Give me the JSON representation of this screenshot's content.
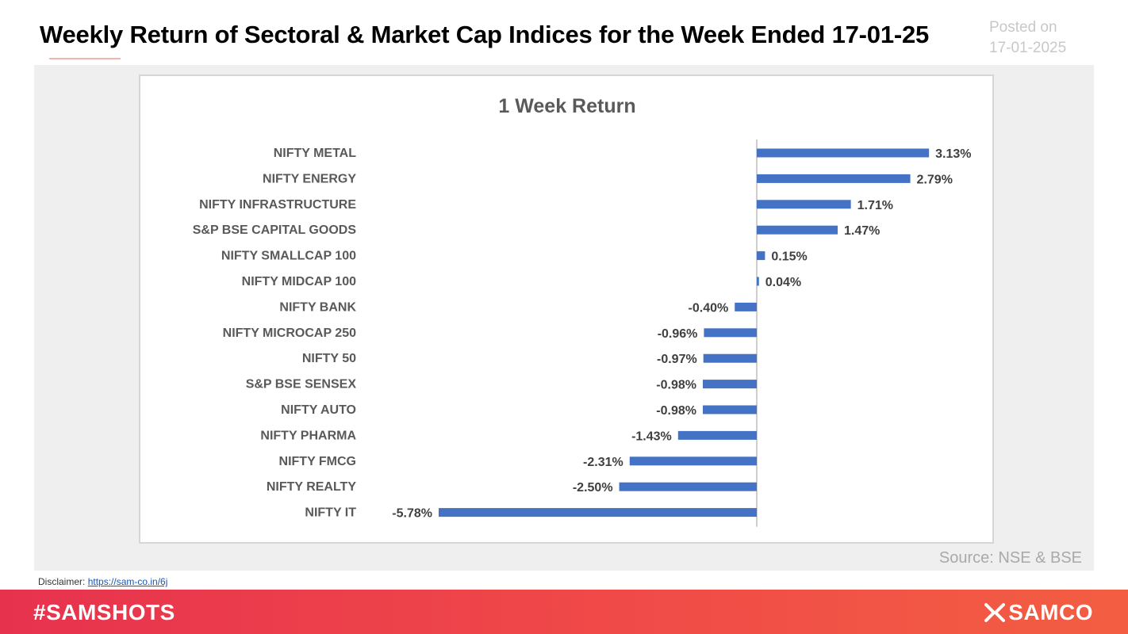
{
  "header": {
    "title": "Weekly Return of Sectoral & Market Cap Indices for the Week Ended 17-01-25",
    "posted_label": "Posted on",
    "posted_date": "17-01-2025"
  },
  "source": "Source: NSE & BSE",
  "disclaimer": {
    "label": "Disclaimer:",
    "link_text": "https://sam-co.in/6j"
  },
  "footer": {
    "hashtag": "#SAMSHOTS",
    "brand": "SAMCO",
    "brand_icon": "samco-logo-icon"
  },
  "chart_data": {
    "type": "bar",
    "orientation": "horizontal",
    "title": "1 Week Return",
    "color": "#4472c4",
    "unit": "%",
    "categories": [
      "NIFTY METAL",
      "NIFTY ENERGY",
      "NIFTY INFRASTRUCTURE",
      "S&P BSE CAPITAL GOODS",
      "NIFTY SMALLCAP 100",
      "NIFTY MIDCAP 100",
      "NIFTY BANK",
      "NIFTY MICROCAP 250",
      "NIFTY 50",
      "S&P BSE SENSEX",
      "NIFTY AUTO",
      "NIFTY PHARMA",
      "NIFTY FMCG",
      "NIFTY REALTY",
      "NIFTY IT"
    ],
    "values": [
      3.13,
      2.79,
      1.71,
      1.47,
      0.15,
      0.04,
      -0.4,
      -0.96,
      -0.97,
      -0.98,
      -0.98,
      -1.43,
      -2.31,
      -2.5,
      -5.78
    ],
    "labels": [
      "3.13%",
      "2.79%",
      "1.71%",
      "1.47%",
      "0.15%",
      "0.04%",
      "-0.40%",
      "-0.96%",
      "-0.97%",
      "-0.98%",
      "-0.98%",
      "-1.43%",
      "-2.31%",
      "-2.50%",
      "-5.78%"
    ],
    "xlim": [
      -5.78,
      3.13
    ],
    "grid": false,
    "legend": "none"
  }
}
